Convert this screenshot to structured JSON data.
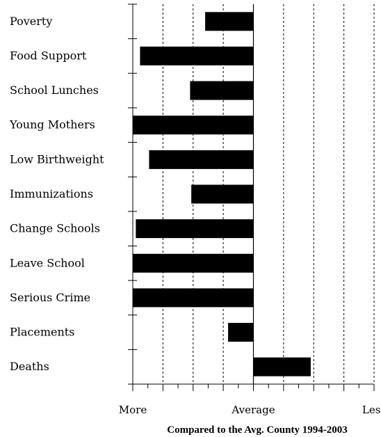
{
  "chart_data": {
    "type": "bar",
    "orientation": "horizontal",
    "categories": [
      "Poverty",
      "Food Support",
      "School Lunches",
      "Young Mothers",
      "Low Birthweight",
      "Immunizations",
      "Change Schools",
      "Leave School",
      "Serious Crime",
      "Placements",
      "Deaths"
    ],
    "values": [
      -0.8,
      -1.88,
      -1.05,
      -2.0,
      -1.73,
      -1.03,
      -1.95,
      -2.0,
      -2.0,
      -0.42,
      0.95
    ],
    "xlim": [
      -2,
      2
    ],
    "x_tick_labels": [
      {
        "value": -2,
        "label": "More"
      },
      {
        "value": 0,
        "label": "Average"
      },
      {
        "value": 2,
        "label": "Less"
      }
    ],
    "xlabel": "Compared to the Avg. County 1994-2003",
    "grid": "vertical dashed at 0.5 intervals",
    "bar_color": "#000000"
  }
}
